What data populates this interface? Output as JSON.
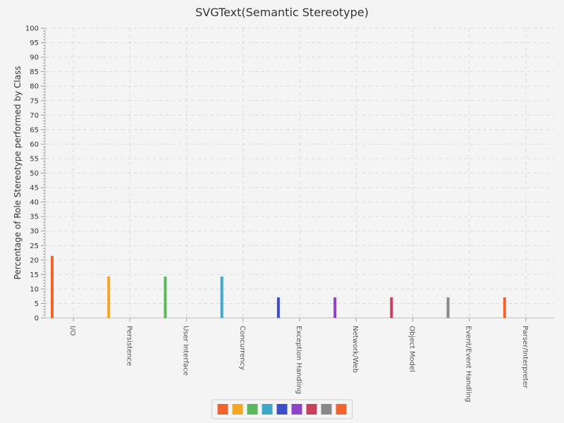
{
  "chart_data": {
    "type": "bar",
    "title": "SVGText(Semantic Stereotype)",
    "xlabel": "",
    "ylabel": "Percentage of Role Stereotype performed by Class",
    "ylim": [
      0,
      100
    ],
    "ytick_step": 5,
    "grid": true,
    "legend_placement": "bottom",
    "categories": [
      "I/O",
      "Persistence",
      "User Interface",
      "Concurrency",
      "Exception Handling",
      "Network/Web",
      "Object Model",
      "Event/Event Handling",
      "Parser/Interpreter"
    ],
    "values": [
      21.4,
      14.3,
      14.3,
      14.3,
      7.1,
      7.1,
      7.1,
      7.1,
      7.1
    ],
    "colors": [
      "#f0642e",
      "#f5a623",
      "#5cb85c",
      "#3ea8c8",
      "#3a4fc8",
      "#8e44c8",
      "#c8405a",
      "#888888",
      "#f0642e"
    ]
  }
}
